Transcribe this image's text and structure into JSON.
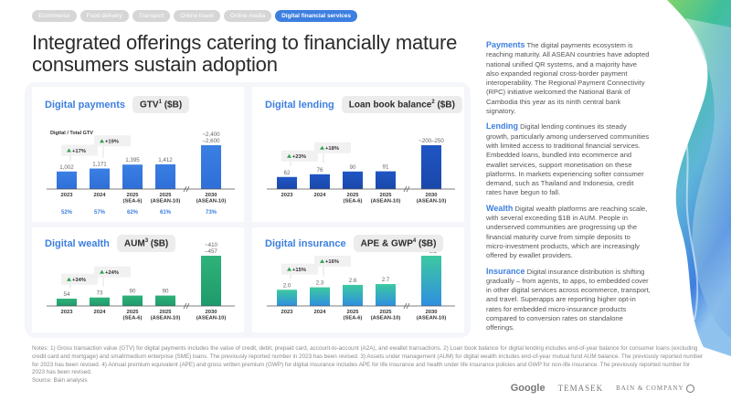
{
  "tabs": [
    {
      "label": "Ecommerce",
      "active": false
    },
    {
      "label": "Food delivery",
      "active": false
    },
    {
      "label": "Transport",
      "active": false
    },
    {
      "label": "Online travel",
      "active": false
    },
    {
      "label": "Online media",
      "active": false
    },
    {
      "label": "Digital financial services",
      "active": true
    }
  ],
  "title": "Integrated offerings catering to financially mature consumers sustain adoption",
  "cards": {
    "payments": {
      "name": "Digital payments",
      "metric": "GTV",
      "sup": "1",
      "unit": " ($B)",
      "sublabel": "Digital / Total GTV"
    },
    "lending": {
      "name": "Digital lending",
      "metric": "Loan book balance",
      "sup": "2",
      "unit": " ($B)"
    },
    "wealth": {
      "name": "Digital wealth",
      "metric": "AUM",
      "sup": "3",
      "unit": " ($B)"
    },
    "insurance": {
      "name": "Digital insurance",
      "metric": "APE & GWP",
      "sup": "4",
      "unit": " ($B)"
    }
  },
  "chart_data": [
    {
      "type": "bar",
      "title": "Digital payments GTV ($B)",
      "categories": [
        "2023",
        "2024",
        "2025 (SEA-6)",
        "2025 (ASEAN-10)",
        "2030 (ASEAN-10)"
      ],
      "cat_lines": [
        [
          "2023"
        ],
        [
          "2024"
        ],
        [
          "2025",
          "(SEA-6)"
        ],
        [
          "2025",
          "(ASEAN-10)"
        ],
        [
          "2030",
          "(ASEAN-10)"
        ]
      ],
      "values": [
        1002,
        1171,
        1395,
        1412,
        2500
      ],
      "labels": [
        "1,002",
        "1,171",
        "1,395",
        "1,412",
        "~2,400\n–2,600"
      ],
      "growth": [
        "+17%",
        "+19%"
      ],
      "share_label": "Digital / Total GTV",
      "shares": [
        "52%",
        "57%",
        "62%",
        "61%",
        "73%"
      ],
      "color": "#3a7fe3",
      "color2": "#2f6fd8",
      "axis_break": true
    },
    {
      "type": "bar",
      "title": "Digital lending Loan book balance ($B)",
      "categories": [
        "2023",
        "2024",
        "2025 (SEA-6)",
        "2025 (ASEAN-10)",
        "2030 (ASEAN-10)"
      ],
      "cat_lines": [
        [
          "2023"
        ],
        [
          "2024"
        ],
        [
          "2025",
          "(SEA-6)"
        ],
        [
          "2025",
          "(ASEAN-10)"
        ],
        [
          "2030",
          "(ASEAN-10)"
        ]
      ],
      "values": [
        62,
        76,
        90,
        91,
        225
      ],
      "labels": [
        "62",
        "76",
        "90",
        "91",
        "~200–250"
      ],
      "growth": [
        "+23%",
        "+18%"
      ],
      "color": "#1f56c4",
      "color2": "#1a47aa",
      "axis_break": true
    },
    {
      "type": "bar",
      "title": "Digital wealth AUM ($B)",
      "categories": [
        "2023",
        "2024",
        "2025 (SEA-6)",
        "2025 (ASEAN-10)",
        "2030 (ASEAN-10)"
      ],
      "cat_lines": [
        [
          "2023"
        ],
        [
          "2024"
        ],
        [
          "2025",
          "(SEA-6)"
        ],
        [
          "2025",
          "(ASEAN-10)"
        ],
        [
          "2030",
          "(ASEAN-10)"
        ]
      ],
      "values": [
        54,
        73,
        90,
        90,
        433
      ],
      "labels": [
        "54",
        "73",
        "90",
        "90",
        "~410\n–457"
      ],
      "growth": [
        "+34%",
        "+24%"
      ],
      "color": "#2fb27a",
      "color2": "#1e9a6b",
      "axis_break": true
    },
    {
      "type": "bar",
      "title": "Digital insurance APE & GWP ($B)",
      "categories": [
        "2023",
        "2024",
        "2025 (SEA-6)",
        "2025 (ASEAN-10)",
        "2030 (ASEAN-10)"
      ],
      "cat_lines": [
        [
          "2023"
        ],
        [
          "2024"
        ],
        [
          "2025",
          "(SEA-6)"
        ],
        [
          "2025",
          "(ASEAN-10)"
        ],
        [
          "2030",
          "(ASEAN-10)"
        ]
      ],
      "values": [
        2.0,
        2.3,
        2.6,
        2.7,
        6.2
      ],
      "labels": [
        "2.0",
        "2.3",
        "2.6",
        "2.7",
        "~6.2"
      ],
      "growth": [
        "+15%",
        "+16%"
      ],
      "color": "#3cc9a0",
      "color2": "#2f8ee0",
      "axis_break": true
    }
  ],
  "insights": [
    {
      "heading": "Payments",
      "text": "The digital payments ecosystem is reaching maturity. All ASEAN countries have adopted national unified QR systems, and a majority have also expanded regional cross-border payment interoperability. The Regional Payment Connectivity (RPC) initiative welcomed the National Bank of Cambodia this year as its ninth central bank signatory."
    },
    {
      "heading": "Lending",
      "text": "Digital lending continues its steady growth, particularly among underserved communities with limited access to traditional financial services. Embedded loans, bundled into ecommerce and ewallet services, support monetisation on these platforms. In markets experiencing softer consumer demand, such as Thailand and Indonesia, credit rates have begun to fall."
    },
    {
      "heading": "Wealth",
      "text": "Digital wealth platforms are reaching scale, with several exceeding $1B in AUM. People in underserved communities are progressing up the financial maturity curve from simple deposits to micro-investment products, which are increasingly offered by ewallet providers."
    },
    {
      "heading": "Insurance",
      "text": "Digital insurance distribution is shifting gradually – from agents, to apps, to embedded cover in other digital services across ecommerce, transport, and travel. Superapps are reporting higher opt-in rates for embedded micro-insurance products compared to conversion rates on standalone offerings."
    }
  ],
  "notes": "Notes: 1) Gross transaction value (GTV) for digital payments includes the value of credit, debit, prepaid card, account-to-account (A2A), and ewallet transactions. 2) Loan book balance for digital lending includes end-of-year balance for consumer loans (excluding credit card and mortgage) and small/medium enterprise (SME) loans. The previously reported number in 2023 has been revised. 3) Assets under management (AUM) for digital wealth includes end-of-year mutual fund AUM balance. The previously reported number for 2023 has been revised. 4) Annual premium equivalent (APE) and gross written premium (GWP) for digital insurance includes APE for life insurance and health under life insurance policies and GWP for non-life insurance. The previously reported number for 2023 has been revised.",
  "source": "Source: Bain analysis",
  "logos": {
    "google": "Google",
    "temasek": "TEMASEK",
    "bain": "BAIN & COMPANY"
  }
}
